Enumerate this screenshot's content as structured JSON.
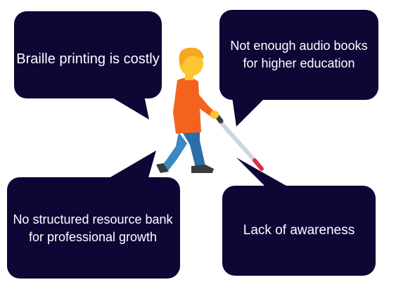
{
  "colors": {
    "bubble": "#0d0736",
    "bubble_text": "#ffffff",
    "skin": "#fdc52f",
    "hair": "#f5a623",
    "shirt": "#f4631e",
    "pants": "#3b88c3",
    "shoes": "#3b3b3b",
    "cane": "#ccd6dd",
    "cane_tip": "#dd2e44"
  },
  "bubbles": [
    {
      "id": "braille",
      "text": "Braille printing is costly"
    },
    {
      "id": "audio",
      "text": "Not enough audio books for higher education"
    },
    {
      "id": "resource",
      "text": "No structured resource bank for professional growth"
    },
    {
      "id": "awareness",
      "text": "Lack of awareness"
    }
  ],
  "figure": {
    "icon": "person-with-white-cane-icon"
  }
}
